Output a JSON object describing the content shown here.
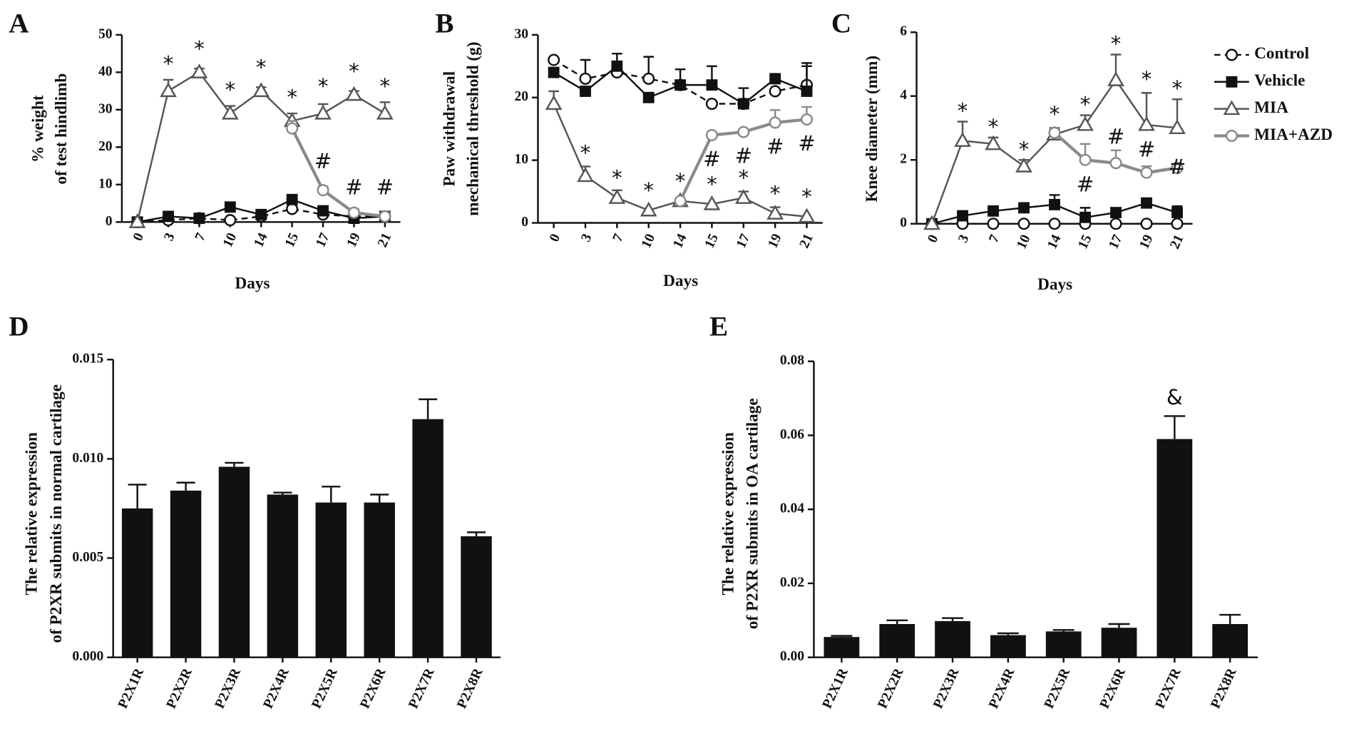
{
  "chart_data": [
    {
      "type": "line",
      "label": "A",
      "xlabel": "Days",
      "ylabel": [
        "% weight",
        "of test hindlimb"
      ],
      "categories": [
        "0",
        "3",
        "7",
        "10",
        "14",
        "15",
        "17",
        "19",
        "21"
      ],
      "ylim": [
        0,
        50
      ],
      "yticks": [
        0,
        10,
        20,
        30,
        40,
        50
      ],
      "series": [
        {
          "color": "#111111",
          "dash": true,
          "marker": "circle",
          "filled": false,
          "values": [
            0,
            0.5,
            1,
            0.5,
            1.5,
            3.5,
            2,
            1.5,
            1.5
          ]
        },
        {
          "color": "#111111",
          "dash": false,
          "marker": "square",
          "filled": true,
          "values": [
            0,
            1.5,
            1,
            4,
            2,
            6,
            3,
            1,
            1.5
          ]
        },
        {
          "color": "#555555",
          "dash": false,
          "marker": "triangle",
          "filled": false,
          "values": [
            0,
            35,
            40,
            29,
            35,
            27,
            29,
            34,
            29
          ],
          "errors": [
            null,
            3,
            1,
            2,
            1,
            2,
            2.5,
            1,
            3
          ]
        },
        {
          "color": "#8a8a8a",
          "dash": false,
          "marker": "circle",
          "filled": false,
          "values": [
            null,
            null,
            null,
            null,
            null,
            25,
            8.5,
            2.5,
            1.5
          ],
          "errors": [
            null,
            null,
            null,
            null,
            null,
            2,
            1,
            1,
            1
          ]
        }
      ],
      "annotations": [
        {
          "text": "*",
          "x": "3",
          "y": 42
        },
        {
          "text": "*",
          "x": "7",
          "y": 46
        },
        {
          "text": "*",
          "x": "10",
          "y": 35
        },
        {
          "text": "*",
          "x": "14",
          "y": 41
        },
        {
          "text": "*",
          "x": "15",
          "y": 33
        },
        {
          "text": "*",
          "x": "17",
          "y": 36
        },
        {
          "text": "*",
          "x": "19",
          "y": 40
        },
        {
          "text": "*",
          "x": "21",
          "y": 36
        },
        {
          "text": "#",
          "x": "17",
          "y": 16
        },
        {
          "text": "#",
          "x": "19",
          "y": 9
        },
        {
          "text": "#",
          "x": "21",
          "y": 9
        }
      ]
    },
    {
      "type": "line",
      "label": "B",
      "xlabel": "Days",
      "ylabel": [
        "Paw withdrawal",
        "mechanical threshold (g)"
      ],
      "categories": [
        "0",
        "3",
        "7",
        "10",
        "14",
        "15",
        "17",
        "19",
        "21"
      ],
      "ylim": [
        0,
        30
      ],
      "yticks": [
        0,
        10,
        20,
        30
      ],
      "series": [
        {
          "color": "#111111",
          "dash": true,
          "marker": "circle",
          "filled": false,
          "values": [
            26,
            23,
            24,
            23,
            22,
            19,
            19,
            21,
            22
          ],
          "errors": [
            null,
            3,
            null,
            3.5,
            null,
            null,
            null,
            null,
            3.5
          ]
        },
        {
          "color": "#111111",
          "dash": false,
          "marker": "square",
          "filled": true,
          "values": [
            24,
            21,
            25,
            20,
            22,
            22,
            19,
            23,
            21
          ],
          "errors": [
            null,
            null,
            2,
            null,
            2.5,
            3,
            2.5,
            null,
            4
          ]
        },
        {
          "color": "#555555",
          "dash": false,
          "marker": "triangle",
          "filled": false,
          "values": [
            19,
            7.5,
            4,
            2,
            3.5,
            3,
            4,
            1.5,
            1
          ],
          "errors": [
            2,
            1.5,
            1.2,
            null,
            null,
            null,
            1,
            1,
            null
          ]
        },
        {
          "color": "#8a8a8a",
          "dash": false,
          "marker": "circle",
          "filled": false,
          "values": [
            null,
            null,
            null,
            null,
            3.5,
            14,
            14.5,
            16,
            16.5
          ],
          "errors": [
            null,
            null,
            null,
            null,
            null,
            null,
            null,
            2,
            2
          ]
        }
      ],
      "annotations": [
        {
          "text": "*",
          "x": "3",
          "y": 11
        },
        {
          "text": "*",
          "x": "7",
          "y": 7
        },
        {
          "text": "*",
          "x": "10",
          "y": 5
        },
        {
          "text": "*",
          "x": "14",
          "y": 6.5
        },
        {
          "text": "*",
          "x": "15",
          "y": 6
        },
        {
          "text": "*",
          "x": "17",
          "y": 7
        },
        {
          "text": "*",
          "x": "19",
          "y": 4.5
        },
        {
          "text": "*",
          "x": "21",
          "y": 4
        },
        {
          "text": "#",
          "x": "15",
          "y": 10
        },
        {
          "text": "#",
          "x": "17",
          "y": 10.5
        },
        {
          "text": "#",
          "x": "19",
          "y": 12
        },
        {
          "text": "#",
          "x": "21",
          "y": 12.5
        }
      ]
    },
    {
      "type": "line",
      "label": "C",
      "xlabel": "Days",
      "ylabel": [
        "Knee diameter (mm)"
      ],
      "legend": "right",
      "categories": [
        "0",
        "3",
        "7",
        "10",
        "14",
        "15",
        "17",
        "19",
        "21"
      ],
      "ylim": [
        0,
        6
      ],
      "yticks": [
        0,
        2,
        4,
        6
      ],
      "series": [
        {
          "name": "Control",
          "color": "#111111",
          "dash": true,
          "marker": "circle",
          "filled": false,
          "values": [
            0,
            0,
            0,
            0,
            0,
            0,
            0,
            0,
            0
          ]
        },
        {
          "name": "Vehicle",
          "color": "#111111",
          "dash": false,
          "marker": "square",
          "filled": true,
          "values": [
            0,
            0.25,
            0.4,
            0.5,
            0.6,
            0.2,
            0.35,
            0.65,
            0.35
          ],
          "errors": [
            null,
            null,
            null,
            null,
            0.3,
            0.3,
            null,
            null,
            0.2
          ]
        },
        {
          "name": "MIA",
          "color": "#555555",
          "dash": false,
          "marker": "triangle",
          "filled": false,
          "values": [
            0,
            2.6,
            2.5,
            1.8,
            2.8,
            3.1,
            4.5,
            3.1,
            3
          ],
          "errors": [
            null,
            0.6,
            0.2,
            0.2,
            0.2,
            0.3,
            0.8,
            1,
            0.9
          ]
        },
        {
          "name": "MIA+AZD",
          "color": "#8a8a8a",
          "dash": false,
          "marker": "circle",
          "filled": false,
          "values": [
            null,
            null,
            null,
            null,
            2.85,
            2,
            1.9,
            1.6,
            1.75
          ],
          "errors": [
            null,
            null,
            null,
            null,
            0.1,
            0.5,
            0.4,
            0.2,
            null
          ]
        }
      ],
      "annotations": [
        {
          "text": "*",
          "x": "3",
          "y": 3.5
        },
        {
          "text": "*",
          "x": "7",
          "y": 3
        },
        {
          "text": "*",
          "x": "10",
          "y": 2.3
        },
        {
          "text": "*",
          "x": "14",
          "y": 3.4
        },
        {
          "text": "*",
          "x": "15",
          "y": 3.7
        },
        {
          "text": "*",
          "x": "17",
          "y": 5.6
        },
        {
          "text": "*",
          "x": "19",
          "y": 4.5
        },
        {
          "text": "*",
          "x": "21",
          "y": 4.2
        },
        {
          "text": "#",
          "x": "15",
          "y": 1.2
        },
        {
          "text": "#",
          "x": "17",
          "y": 2.7
        },
        {
          "text": "#",
          "x": "19",
          "y": 2.3
        },
        {
          "text": "#",
          "x": "21",
          "y": 1.75
        }
      ]
    },
    {
      "type": "bar",
      "label": "D",
      "ylabel": [
        "The relative expression",
        "of P2XR submits in normal cartilage"
      ],
      "categories": [
        "P2X1R",
        "P2X2R",
        "P2X3R",
        "P2X4R",
        "P2X5R",
        "P2X6R",
        "P2X7R",
        "P2X8R"
      ],
      "values": [
        0.0075,
        0.0084,
        0.0096,
        0.0082,
        0.0078,
        0.0078,
        0.012,
        0.0061
      ],
      "errors": [
        0.0012,
        0.0004,
        0.0002,
        0.0001,
        0.0008,
        0.0004,
        0.001,
        0.0002
      ],
      "color": "#111111",
      "ylim": [
        0,
        0.015
      ],
      "yticks": [
        {
          "value": 0,
          "label": "0.000"
        },
        {
          "value": 0.005,
          "label": "0.005"
        },
        {
          "value": 0.01,
          "label": "0.010"
        },
        {
          "value": 0.015,
          "label": "0.015"
        }
      ]
    },
    {
      "type": "bar",
      "label": "E",
      "ylabel": [
        "The relative expression",
        "of P2XR submits in OA cartilage"
      ],
      "categories": [
        "P2X1R",
        "P2X2R",
        "P2X3R",
        "P2X4R",
        "P2X5R",
        "P2X6R",
        "P2X7R",
        "P2X8R"
      ],
      "values": [
        0.0055,
        0.009,
        0.0098,
        0.006,
        0.007,
        0.008,
        0.059,
        0.009
      ],
      "errors": [
        0.0003,
        0.001,
        0.0008,
        0.0005,
        0.0004,
        0.001,
        0.0062,
        0.0025
      ],
      "color": "#111111",
      "ylim": [
        0,
        0.08
      ],
      "yticks": [
        {
          "value": 0,
          "label": "0.00"
        },
        {
          "value": 0.02,
          "label": "0.02"
        },
        {
          "value": 0.04,
          "label": "0.04"
        },
        {
          "value": 0.06,
          "label": "0.06"
        },
        {
          "value": 0.08,
          "label": "0.08"
        }
      ],
      "annotations": [
        {
          "text": "&",
          "x": "P2X7R",
          "y": 0.07
        }
      ]
    }
  ]
}
